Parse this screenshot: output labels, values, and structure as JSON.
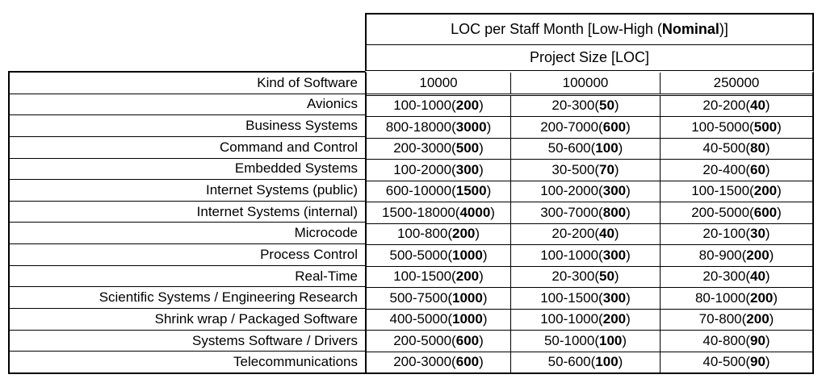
{
  "colors": {
    "text": "#000000",
    "border": "#000000",
    "background": "#ffffff"
  },
  "format": {
    "range_separator": "-",
    "open": "(",
    "close": ")"
  },
  "table": {
    "title_prefix": "LOC per Staff Month [Low-High (",
    "title_bold": "Nominal",
    "title_suffix": ")]",
    "subtitle": "Project Size [LOC]",
    "kind_header": "Kind of Software"
  },
  "chart_data": {
    "type": "table",
    "title": "LOC per Staff Month [Low-High (Nominal)]",
    "subtitle": "Project Size [LOC]",
    "row_header": "Kind of Software",
    "columns": [
      "10000",
      "100000",
      "250000"
    ],
    "rows": [
      {
        "kind": "Avionics",
        "cells": [
          {
            "low": 100,
            "high": 1000,
            "nominal": 200
          },
          {
            "low": 20,
            "high": 300,
            "nominal": 50
          },
          {
            "low": 20,
            "high": 200,
            "nominal": 40
          }
        ]
      },
      {
        "kind": "Business Systems",
        "cells": [
          {
            "low": 800,
            "high": 18000,
            "nominal": 3000
          },
          {
            "low": 200,
            "high": 7000,
            "nominal": 600
          },
          {
            "low": 100,
            "high": 5000,
            "nominal": 500
          }
        ]
      },
      {
        "kind": "Command and Control",
        "cells": [
          {
            "low": 200,
            "high": 3000,
            "nominal": 500
          },
          {
            "low": 50,
            "high": 600,
            "nominal": 100
          },
          {
            "low": 40,
            "high": 500,
            "nominal": 80
          }
        ]
      },
      {
        "kind": "Embedded Systems",
        "cells": [
          {
            "low": 100,
            "high": 2000,
            "nominal": 300
          },
          {
            "low": 30,
            "high": 500,
            "nominal": 70
          },
          {
            "low": 20,
            "high": 400,
            "nominal": 60
          }
        ]
      },
      {
        "kind": "Internet Systems (public)",
        "cells": [
          {
            "low": 600,
            "high": 10000,
            "nominal": 1500
          },
          {
            "low": 100,
            "high": 2000,
            "nominal": 300
          },
          {
            "low": 100,
            "high": 1500,
            "nominal": 200
          }
        ]
      },
      {
        "kind": "Internet Systems (internal)",
        "cells": [
          {
            "low": 1500,
            "high": 18000,
            "nominal": 4000
          },
          {
            "low": 300,
            "high": 7000,
            "nominal": 800
          },
          {
            "low": 200,
            "high": 5000,
            "nominal": 600
          }
        ]
      },
      {
        "kind": "Microcode",
        "cells": [
          {
            "low": 100,
            "high": 800,
            "nominal": 200
          },
          {
            "low": 20,
            "high": 200,
            "nominal": 40
          },
          {
            "low": 20,
            "high": 100,
            "nominal": 30
          }
        ]
      },
      {
        "kind": "Process Control",
        "cells": [
          {
            "low": 500,
            "high": 5000,
            "nominal": 1000
          },
          {
            "low": 100,
            "high": 1000,
            "nominal": 300
          },
          {
            "low": 80,
            "high": 900,
            "nominal": 200
          }
        ]
      },
      {
        "kind": "Real-Time",
        "cells": [
          {
            "low": 100,
            "high": 1500,
            "nominal": 200
          },
          {
            "low": 20,
            "high": 300,
            "nominal": 50
          },
          {
            "low": 20,
            "high": 300,
            "nominal": 40
          }
        ]
      },
      {
        "kind": "Scientific Systems / Engineering Research",
        "cells": [
          {
            "low": 500,
            "high": 7500,
            "nominal": 1000
          },
          {
            "low": 100,
            "high": 1500,
            "nominal": 300
          },
          {
            "low": 80,
            "high": 1000,
            "nominal": 200
          }
        ]
      },
      {
        "kind": "Shrink wrap / Packaged Software",
        "cells": [
          {
            "low": 400,
            "high": 5000,
            "nominal": 1000
          },
          {
            "low": 100,
            "high": 1000,
            "nominal": 200
          },
          {
            "low": 70,
            "high": 800,
            "nominal": 200
          }
        ]
      },
      {
        "kind": "Systems Software / Drivers",
        "cells": [
          {
            "low": 200,
            "high": 5000,
            "nominal": 600
          },
          {
            "low": 50,
            "high": 1000,
            "nominal": 100
          },
          {
            "low": 40,
            "high": 800,
            "nominal": 90
          }
        ]
      },
      {
        "kind": "Telecommunications",
        "cells": [
          {
            "low": 200,
            "high": 3000,
            "nominal": 600
          },
          {
            "low": 50,
            "high": 600,
            "nominal": 100
          },
          {
            "low": 40,
            "high": 500,
            "nominal": 90
          }
        ]
      }
    ]
  }
}
